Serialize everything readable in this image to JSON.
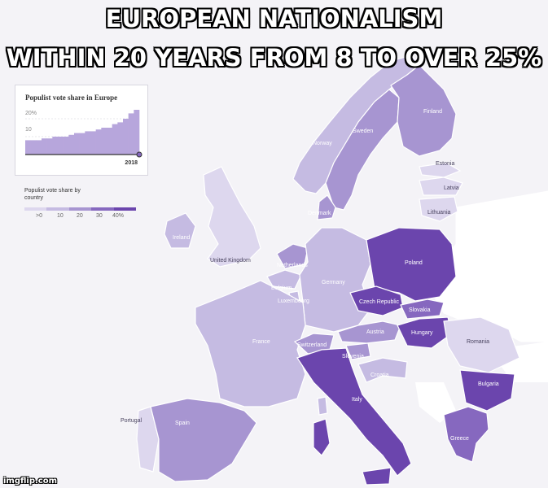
{
  "meme": {
    "title_line_1": "EUROPEAN NATIONALISM",
    "title_line_2": "WITHIN 20 YEARS FROM 8 TO OVER 25%",
    "watermark": "imgflip.com"
  },
  "inset_chart": {
    "title": "Populist vote share in Europe",
    "tick_20": "20%",
    "tick_10": "10",
    "year_label": "2018",
    "values_percent": [
      8,
      8,
      8,
      9,
      9,
      10,
      10,
      10,
      11,
      12,
      12,
      13,
      13,
      14,
      15,
      15,
      17,
      18,
      20,
      23,
      25
    ]
  },
  "legend": {
    "title": "Populist vote share by country",
    "ticks": [
      ">0",
      "10",
      "20",
      "30",
      "40%"
    ],
    "colors": [
      "#f0eef6",
      "#ddd7ee",
      "#c5bbe2",
      "#a795d1",
      "#8668bf",
      "#6b45ad"
    ]
  },
  "colors": {
    "sea": "#f4f3f7",
    "non_eu_land": "#ffffff",
    "border": "#ffffff"
  },
  "countries": {
    "finland": "Finland",
    "sweden": "Sweden",
    "norway": "Norway",
    "estonia": "Estonia",
    "latvia": "Latvia",
    "lithuania": "Lithuania",
    "denmark": "Denmark",
    "ireland": "Ireland",
    "united_kingdom": "United Kingdom",
    "netherlands": "Netherlands",
    "belgium": "Belgium",
    "luxembourg": "Luxembourg",
    "germany": "Germany",
    "poland": "Poland",
    "czech_republic": "Czech Republic",
    "slovakia": "Slovakia",
    "austria": "Austria",
    "hungary": "Hungary",
    "romania": "Romania",
    "france": "France",
    "switzerland": "Switzerland",
    "slovenia": "Slovenia",
    "croatia": "Croatia",
    "italy": "Italy",
    "bulgaria": "Bulgaria",
    "greece": "Greece",
    "portugal": "Portugal",
    "spain": "Spain"
  },
  "country_levels": {
    "finland": 3,
    "sweden": 3,
    "norway": 2,
    "estonia": 1,
    "latvia": 1,
    "lithuania": 1,
    "denmark": 3,
    "ireland": 2,
    "united_kingdom": 1,
    "netherlands": 3,
    "belgium": 2,
    "luxembourg": 2,
    "germany": 2,
    "poland": 5,
    "czech_republic": 5,
    "slovakia": 4,
    "austria": 3,
    "hungary": 5,
    "romania": 1,
    "france": 2,
    "switzerland": 3,
    "slovenia": 3,
    "croatia": 2,
    "italy": 5,
    "bulgaria": 5,
    "greece": 4,
    "portugal": 1,
    "spain": 3
  }
}
